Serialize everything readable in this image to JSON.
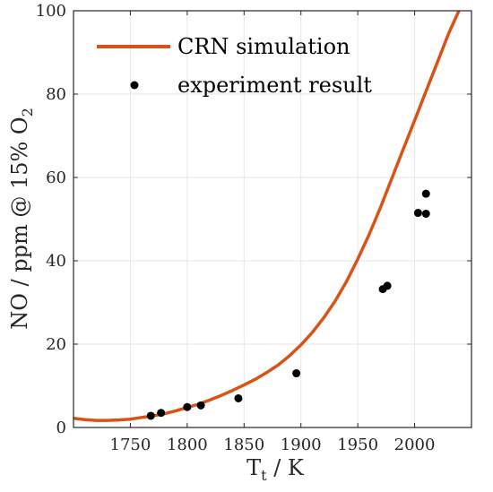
{
  "chart_data": {
    "type": "scatter",
    "title": "",
    "xlabel": "T",
    "xlabel_sub": "t",
    "xlabel_unit": " / K",
    "ylabel": "NO / ppm @ 15% O",
    "ylabel_sub": "2",
    "xlim": [
      1700,
      2050
    ],
    "ylim": [
      0,
      100
    ],
    "x_ticks": [
      1750,
      1800,
      1850,
      1900,
      1950,
      2000
    ],
    "y_ticks": [
      0,
      20,
      40,
      60,
      80,
      100
    ],
    "grid": true,
    "legend_position": "top-left",
    "series": [
      {
        "name": "CRN simulation",
        "kind": "line",
        "color": "#d95319",
        "x": [
          1700,
          1710,
          1720,
          1730,
          1740,
          1750,
          1760,
          1770,
          1780,
          1790,
          1800,
          1810,
          1820,
          1830,
          1840,
          1850,
          1860,
          1870,
          1880,
          1890,
          1900,
          1910,
          1920,
          1930,
          1940,
          1950,
          1960,
          1970,
          1980,
          1990,
          2000,
          2010,
          2020,
          2030,
          2039
        ],
        "y": [
          2.2,
          1.9,
          1.7,
          1.7,
          1.8,
          2.0,
          2.4,
          2.8,
          3.3,
          4.0,
          4.8,
          5.6,
          6.6,
          7.7,
          8.9,
          10.2,
          11.6,
          13.2,
          15.0,
          17.2,
          19.8,
          22.8,
          26.3,
          30.3,
          35.0,
          40.4,
          46.3,
          52.8,
          59.8,
          66.8,
          73.7,
          80.7,
          87.6,
          94.6,
          100.0
        ]
      },
      {
        "name": "experiment result",
        "kind": "scatter",
        "color": "#000000",
        "x": [
          1768,
          1777,
          1800,
          1812,
          1845,
          1896,
          1972,
          1976,
          2003,
          2010,
          2010
        ],
        "y": [
          2.8,
          3.5,
          4.9,
          5.3,
          7.0,
          13.0,
          33.2,
          34.0,
          51.5,
          51.3,
          56.1
        ]
      }
    ]
  }
}
